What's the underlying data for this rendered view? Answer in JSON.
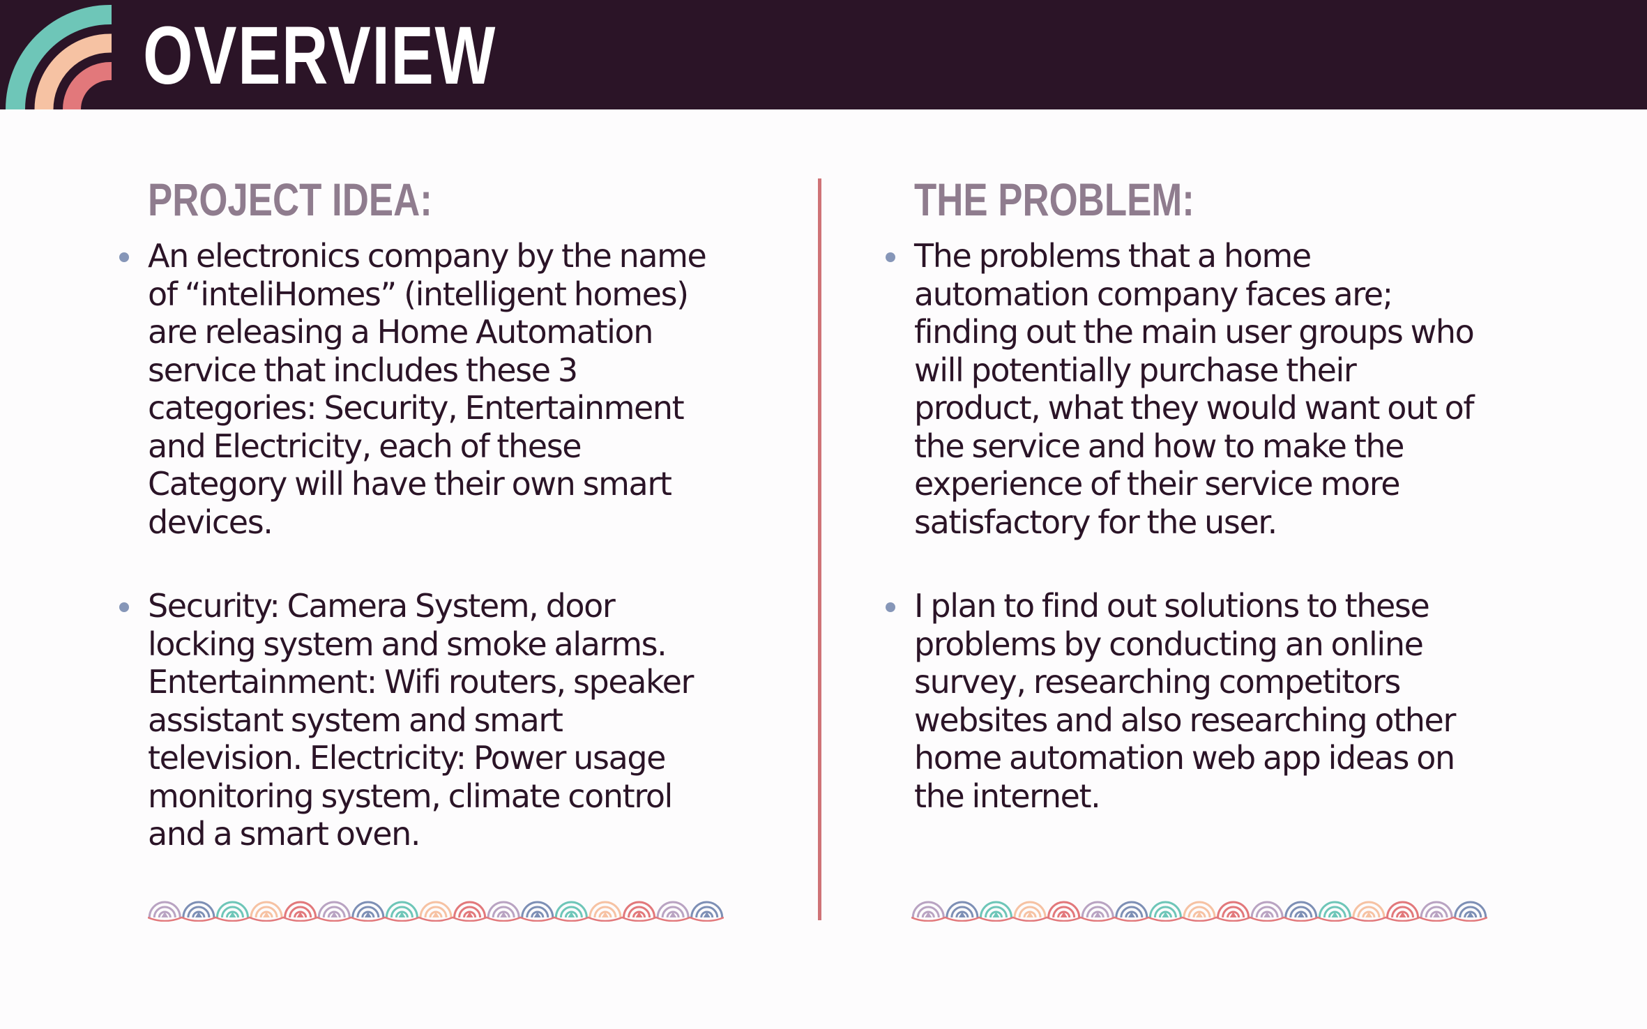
{
  "header": {
    "title": "OVERVIEW",
    "background_color": "#2b1427",
    "logo_icon": "concentric-arcs-icon",
    "logo_colors": [
      "#6ec6b8",
      "#f6c2a3",
      "#e2787b"
    ]
  },
  "left_column": {
    "heading": "PROJECT IDEA:",
    "bullets": [
      "An electronics company by the name of “inteliHomes” (intelligent homes) are releasing a Home Automation service that includes these 3 categories: Security, Entertainment and Electricity, each of these Category will have their own smart devices.",
      "Security: Camera System, door locking system and smoke alarms. Entertainment: Wifi routers, speaker assistant system and smart television. Electricity: Power usage monitoring system, climate control and a smart oven."
    ]
  },
  "right_column": {
    "heading": "THE PROBLEM:",
    "bullets": [
      "The problems that a home automation company faces are; finding out the main user groups who will potentially purchase their product, what they would want out of the service and how to make the experience of their service more satisfactory for the user.",
      "I plan to find out solutions to these problems by conducting an online survey, researching competitors websites and also researching other home automation web app ideas on the internet."
    ]
  },
  "colors": {
    "heading": "#8f7c8e",
    "body_text": "#2b1427",
    "bullet": "#8696b8",
    "divider": "#cf7377",
    "wave_palette": [
      "#b9a3c2",
      "#7d8fb5",
      "#6ec6b8",
      "#f6c2a3",
      "#e2787b"
    ]
  },
  "decorations": {
    "divider_icon": "vertical-divider",
    "wave_icon": "wave-pattern-icon"
  }
}
